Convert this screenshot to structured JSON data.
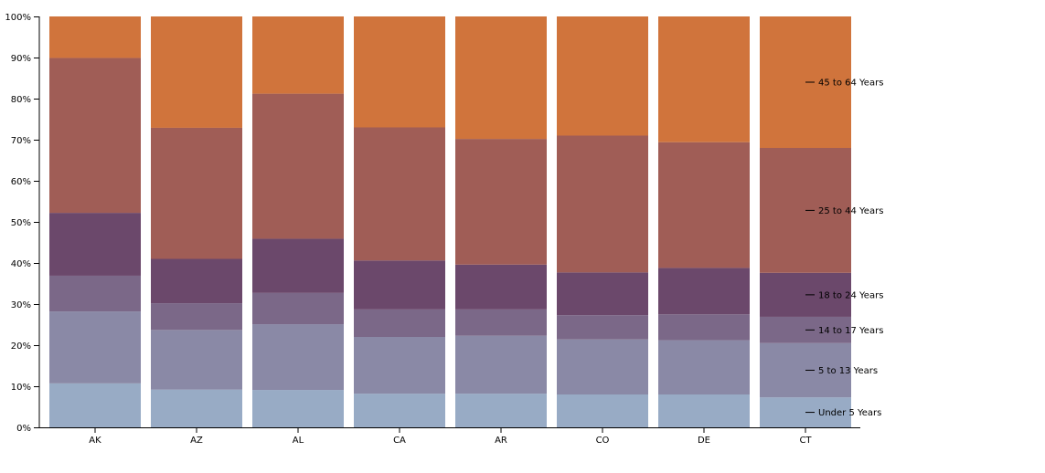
{
  "chart_data": {
    "type": "bar",
    "stacked": true,
    "normalized": true,
    "categories": [
      "AK",
      "AZ",
      "AL",
      "CA",
      "AR",
      "CO",
      "DE",
      "CT"
    ],
    "series": [
      {
        "name": "Under 5 Years",
        "color": "#98abc5",
        "values": [
          10.7,
          9.2,
          9.1,
          8.2,
          8.2,
          8.0,
          8.0,
          7.3
        ]
      },
      {
        "name": "5 to 13 Years",
        "color": "#8a89a6",
        "values": [
          17.5,
          14.5,
          16.0,
          13.8,
          14.1,
          13.4,
          13.2,
          13.2
        ]
      },
      {
        "name": "14 to 17 Years",
        "color": "#7b6888",
        "values": [
          8.7,
          6.5,
          7.6,
          6.7,
          6.4,
          5.9,
          6.3,
          6.4
        ]
      },
      {
        "name": "18 to 24 Years",
        "color": "#6b486b",
        "values": [
          15.3,
          10.8,
          13.2,
          11.9,
          10.9,
          10.4,
          11.3,
          10.7
        ]
      },
      {
        "name": "25 to 44 Years",
        "color": "#a05d56",
        "values": [
          37.7,
          31.9,
          35.3,
          32.4,
          30.6,
          33.3,
          30.6,
          30.4
        ]
      },
      {
        "name": "45 to 64 Years",
        "color": "#d0743c",
        "values": [
          10.1,
          27.1,
          18.8,
          27.0,
          29.8,
          29.0,
          30.6,
          32.0
        ]
      }
    ],
    "y_ticks": [
      "0%",
      "10%",
      "20%",
      "30%",
      "40%",
      "50%",
      "60%",
      "70%",
      "80%",
      "90%",
      "100%"
    ],
    "ylim": [
      0,
      100
    ],
    "legend_position": "inline-right-of-last-bar",
    "grid": false
  }
}
